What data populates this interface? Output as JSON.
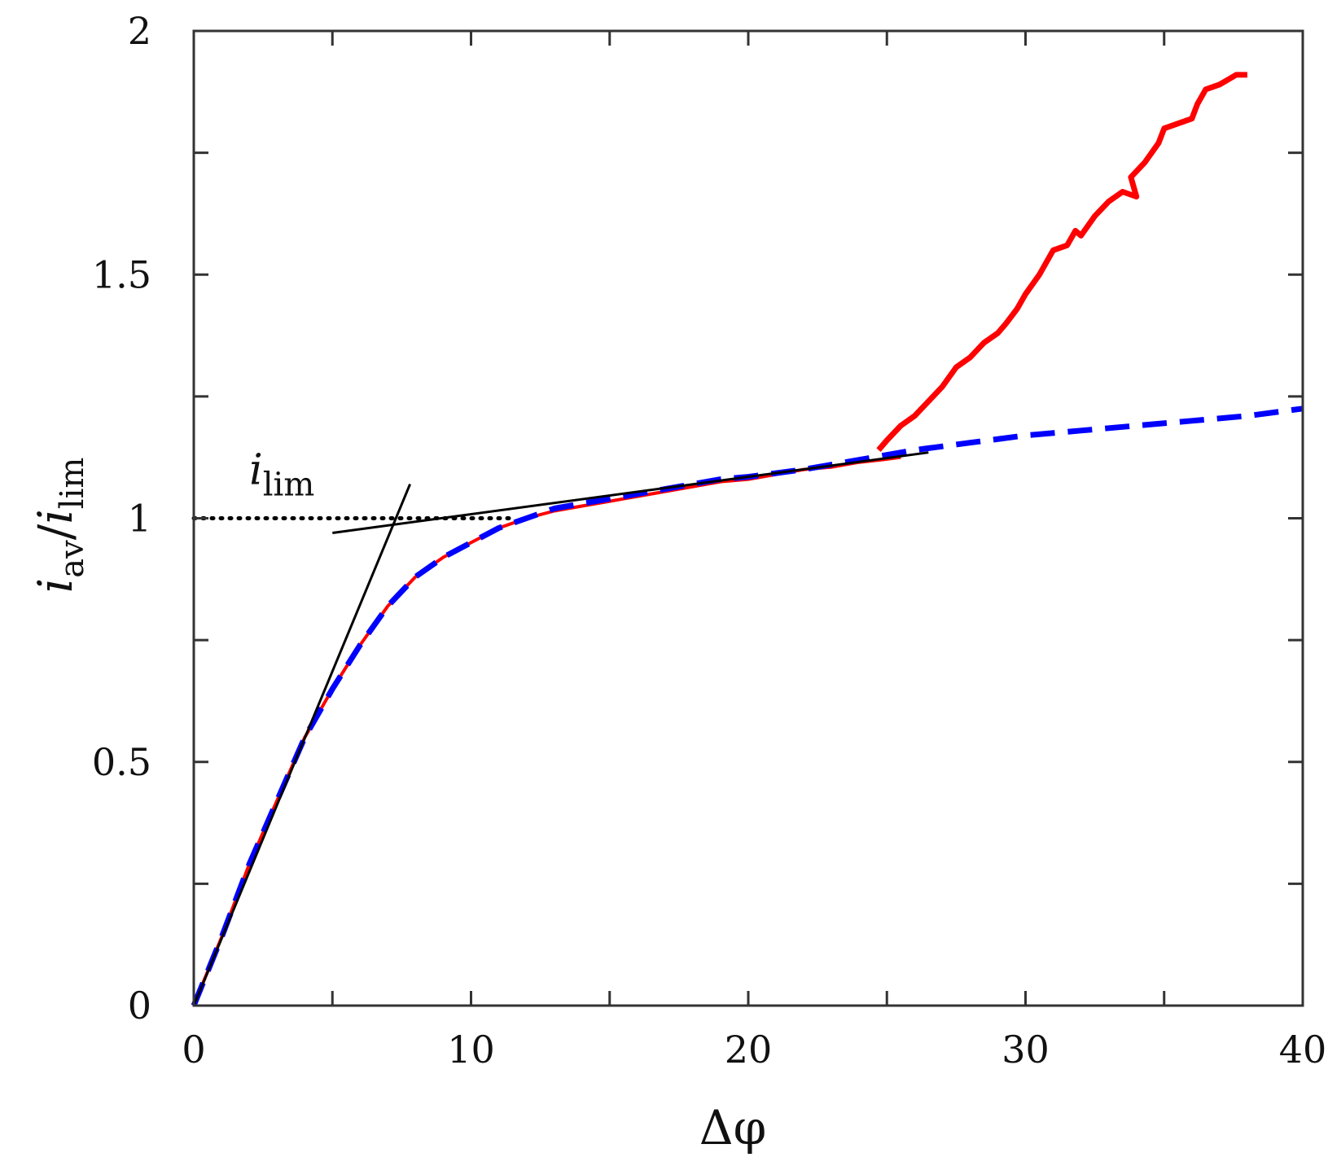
{
  "chart_data": {
    "type": "line",
    "xlabel": "Δφ",
    "ylabel": {
      "num": "i",
      "num_sub": "av",
      "sep": "/",
      "den": "i",
      "den_sub": "lim"
    },
    "xlim": [
      0,
      40
    ],
    "ylim": [
      0,
      2
    ],
    "xticks": [
      0,
      10,
      20,
      30,
      40
    ],
    "yticks_labeled": [
      0,
      0.5,
      1,
      1.5,
      2
    ],
    "yticks_minor": [
      0.25,
      0.75,
      1.25,
      1.75
    ],
    "xticks_minor": [
      5,
      15,
      25,
      35
    ],
    "xtick_labels": [
      "0",
      "10",
      "20",
      "30",
      "40"
    ],
    "ytick_labels": [
      "0",
      "0.5",
      "1",
      "1.5",
      "2"
    ],
    "grid": false,
    "annotation": {
      "text": "i",
      "sub": "lim",
      "x": 2.0,
      "y": 1.07
    },
    "series": [
      {
        "style": "solid",
        "color": "#ff0000",
        "points": [
          [
            0,
            0
          ],
          [
            1,
            0.14
          ],
          [
            2,
            0.29
          ],
          [
            3,
            0.42
          ],
          [
            4,
            0.55
          ],
          [
            5,
            0.65
          ],
          [
            6,
            0.74
          ],
          [
            7,
            0.82
          ],
          [
            8,
            0.88
          ],
          [
            9,
            0.92
          ],
          [
            10,
            0.95
          ],
          [
            11,
            0.98
          ],
          [
            12,
            1.0
          ],
          [
            13,
            1.015
          ],
          [
            14,
            1.025
          ],
          [
            15,
            1.035
          ],
          [
            16,
            1.045
          ],
          [
            17,
            1.055
          ],
          [
            18,
            1.065
          ],
          [
            19,
            1.075
          ],
          [
            20,
            1.08
          ],
          [
            21,
            1.09
          ],
          [
            22,
            1.1
          ],
          [
            23,
            1.105
          ],
          [
            24,
            1.115
          ],
          [
            24.8,
            1.12
          ],
          [
            25.5,
            1.125
          ]
        ]
      },
      {
        "style": "solid",
        "color": "#ff0000",
        "points": [
          [
            24.7,
            1.14
          ],
          [
            25,
            1.16
          ],
          [
            25.5,
            1.19
          ],
          [
            26,
            1.21
          ],
          [
            26.5,
            1.24
          ],
          [
            27,
            1.27
          ],
          [
            27.5,
            1.31
          ],
          [
            28,
            1.33
          ],
          [
            28.5,
            1.36
          ],
          [
            29,
            1.38
          ],
          [
            29.3,
            1.4
          ],
          [
            29.7,
            1.43
          ],
          [
            30,
            1.46
          ],
          [
            30.5,
            1.5
          ],
          [
            31,
            1.55
          ],
          [
            31.5,
            1.56
          ],
          [
            31.8,
            1.59
          ],
          [
            32,
            1.58
          ],
          [
            32.5,
            1.62
          ],
          [
            33,
            1.65
          ],
          [
            33.5,
            1.67
          ],
          [
            34,
            1.66
          ],
          [
            33.8,
            1.7
          ],
          [
            34.3,
            1.73
          ],
          [
            34.8,
            1.77
          ],
          [
            35,
            1.8
          ],
          [
            35.5,
            1.81
          ],
          [
            36,
            1.82
          ],
          [
            36.2,
            1.85
          ],
          [
            36.5,
            1.88
          ],
          [
            37,
            1.89
          ],
          [
            37.3,
            1.9
          ],
          [
            37.6,
            1.91
          ],
          [
            38,
            1.91
          ]
        ]
      },
      {
        "style": "dashed",
        "color": "#0000ff",
        "points": [
          [
            0,
            0
          ],
          [
            1,
            0.14
          ],
          [
            2,
            0.29
          ],
          [
            3,
            0.42
          ],
          [
            4,
            0.55
          ],
          [
            5,
            0.65
          ],
          [
            6,
            0.74
          ],
          [
            7,
            0.82
          ],
          [
            8,
            0.88
          ],
          [
            9,
            0.92
          ],
          [
            10,
            0.95
          ],
          [
            11,
            0.98
          ],
          [
            12,
            1.0
          ],
          [
            13,
            1.02
          ],
          [
            14,
            1.03
          ],
          [
            15,
            1.04
          ],
          [
            16,
            1.05
          ],
          [
            17,
            1.06
          ],
          [
            18,
            1.07
          ],
          [
            19,
            1.08
          ],
          [
            20,
            1.085
          ],
          [
            22,
            1.1
          ],
          [
            24,
            1.12
          ],
          [
            26,
            1.14
          ],
          [
            28,
            1.155
          ],
          [
            30,
            1.17
          ],
          [
            32,
            1.18
          ],
          [
            34,
            1.19
          ],
          [
            36,
            1.2
          ],
          [
            38,
            1.21
          ],
          [
            40,
            1.225
          ]
        ]
      },
      {
        "style": "solid",
        "color": "#000000",
        "points": [
          [
            0,
            0
          ],
          [
            7.8,
            1.07
          ]
        ]
      },
      {
        "style": "solid",
        "color": "#000000",
        "points": [
          [
            5,
            0.97
          ],
          [
            26.5,
            1.135
          ]
        ]
      },
      {
        "style": "dotted",
        "color": "#000000",
        "points": [
          [
            0,
            1.0
          ],
          [
            11.5,
            1.0
          ]
        ]
      }
    ]
  }
}
